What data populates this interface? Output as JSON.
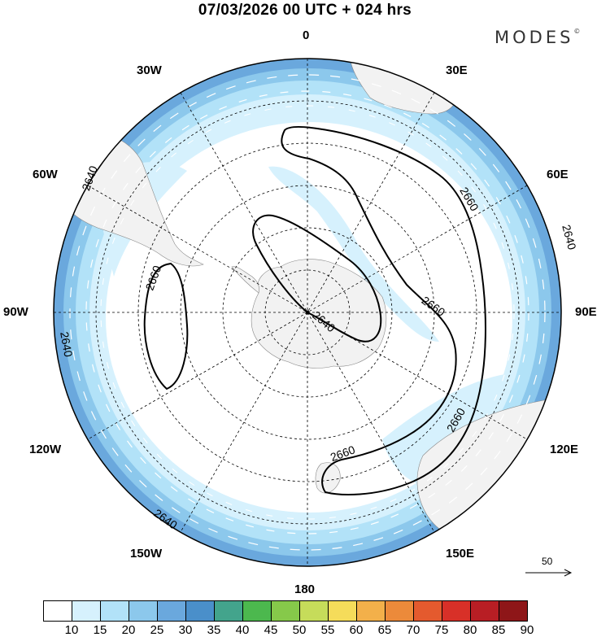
{
  "header": {
    "title": "07/03/2026  00 UTC  + 024 hrs",
    "brand": "MODES",
    "brand_mark": "©"
  },
  "map": {
    "projection": "south-polar-stereographic",
    "longitude_labels": {
      "top": "0",
      "bottom": "180",
      "e30": "30E",
      "e60": "60E",
      "e90": "90E",
      "e120": "120E",
      "e150": "150E",
      "w30": "30W",
      "w60": "60W",
      "w90": "90W",
      "w120": "120W",
      "w150": "150W"
    },
    "contour_labels": {
      "c2640_a": "2640",
      "c2640_b": "2640",
      "c2640_c": "2640",
      "c2640_d": "2640",
      "c2640_e": "2640",
      "c2660_a": "2660",
      "c2660_b": "2660",
      "c2660_c": "2660",
      "c2660_d": "2660",
      "c2660_e": "2660"
    },
    "wind_reference": "50"
  },
  "colorbar": {
    "ticks": [
      "10",
      "15",
      "20",
      "25",
      "30",
      "35",
      "40",
      "45",
      "50",
      "55",
      "60",
      "65",
      "70",
      "75",
      "80",
      "85",
      "90"
    ],
    "colors": [
      "#ffffff",
      "#d6f1fd",
      "#b2e2f8",
      "#8cc8ec",
      "#6aa8dd",
      "#4a8fca",
      "#43a48c",
      "#4cb84e",
      "#86c94a",
      "#c6dc5a",
      "#f5dc5a",
      "#f3b04a",
      "#ec8a3a",
      "#e45a2e",
      "#d83028",
      "#b81e24",
      "#8e1618"
    ]
  },
  "colors": {
    "land": "#f2f2f2",
    "ring_inner": "#d6f1fd",
    "ring_mid": "#b2e2f8",
    "ring_outer": "#8cc8ec"
  }
}
